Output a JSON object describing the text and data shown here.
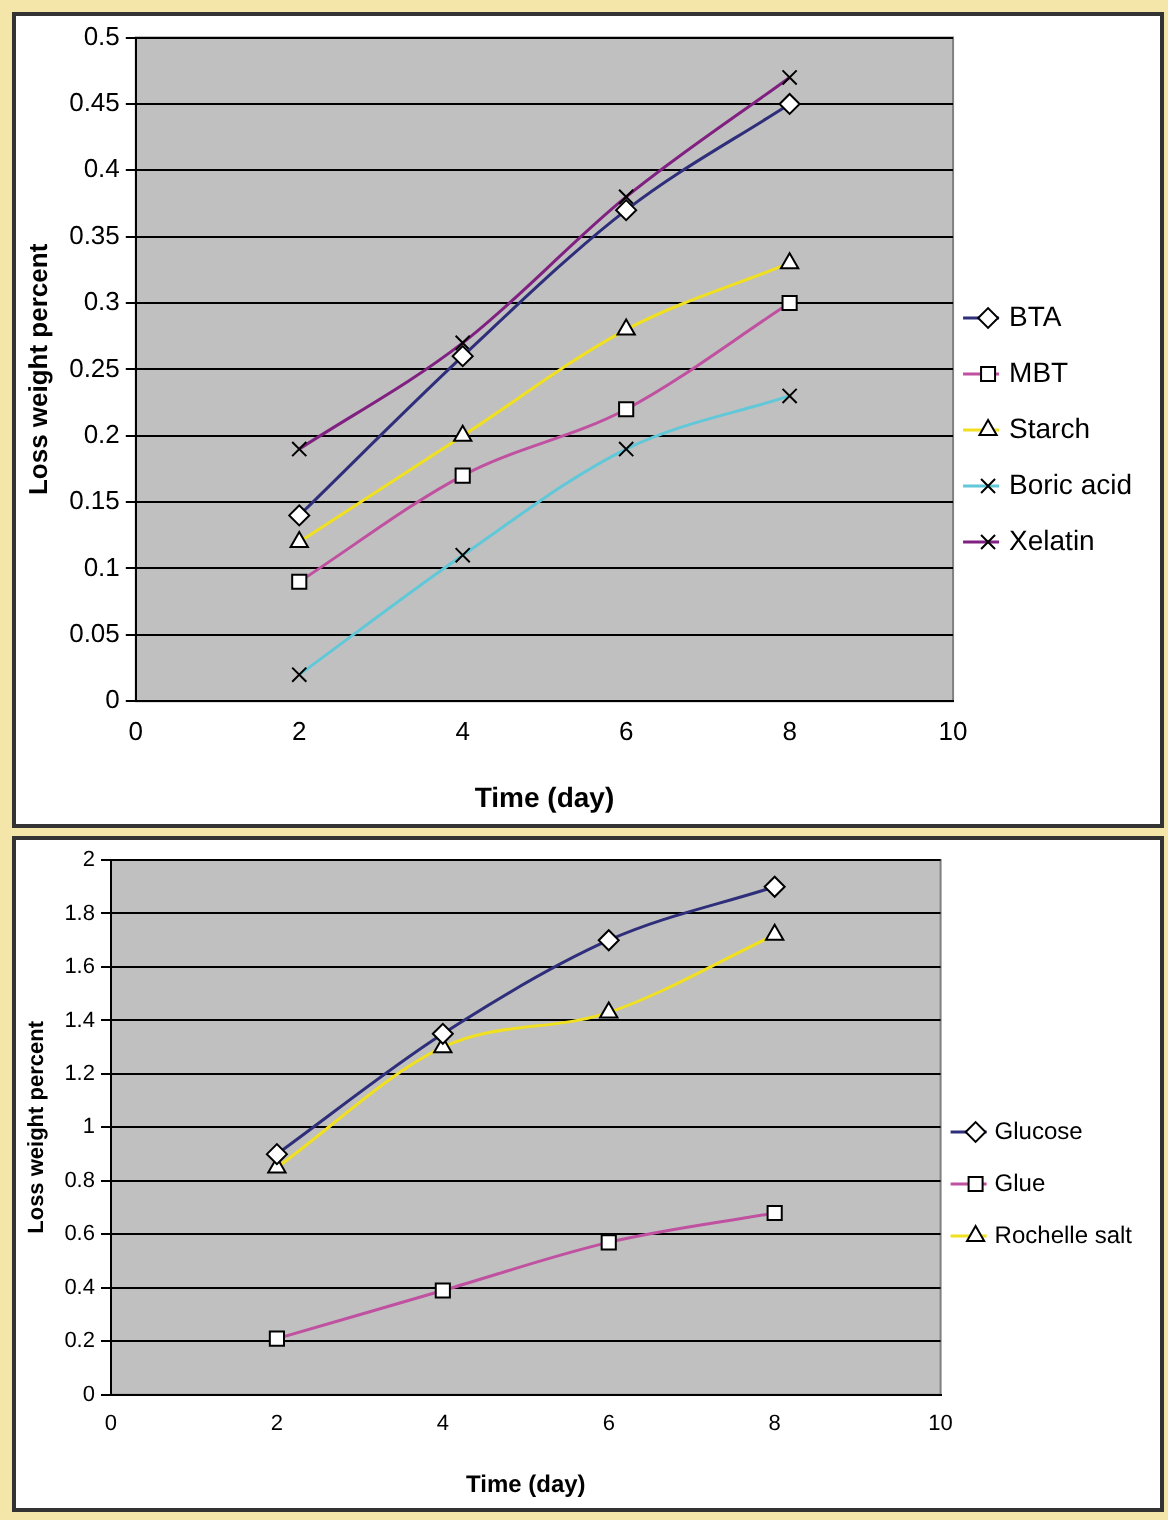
{
  "chart_data": [
    {
      "type": "line",
      "xlabel": "Time (day)",
      "ylabel": "Loss weight percent",
      "x": [
        2,
        4,
        6,
        8
      ],
      "xlim": [
        0,
        10
      ],
      "xticks": [
        0,
        2,
        4,
        6,
        8,
        10
      ],
      "ylim": [
        0,
        0.5
      ],
      "yticks": [
        0,
        0.05,
        0.1,
        0.15,
        0.2,
        0.25,
        0.3,
        0.35,
        0.4,
        0.45,
        0.5
      ],
      "grid": "y",
      "legend": "right",
      "series": [
        {
          "name": "BTA",
          "color": "#2e2e7a",
          "marker": "diamond",
          "values": [
            0.14,
            0.26,
            0.37,
            0.45
          ]
        },
        {
          "name": "MBT",
          "color": "#c050a0",
          "marker": "square",
          "values": [
            0.09,
            0.17,
            0.22,
            0.3
          ]
        },
        {
          "name": "Starch",
          "color": "#f0e020",
          "marker": "triangle",
          "values": [
            0.12,
            0.2,
            0.28,
            0.33
          ]
        },
        {
          "name": "Boric acid",
          "color": "#60c8d8",
          "marker": "cross",
          "values": [
            0.02,
            0.11,
            0.19,
            0.23
          ]
        },
        {
          "name": "Xelatin",
          "color": "#802080",
          "marker": "cross",
          "values": [
            0.19,
            0.27,
            0.38,
            0.47
          ]
        }
      ]
    },
    {
      "type": "line",
      "xlabel": "Time (day)",
      "ylabel": "Loss weight percent",
      "x": [
        2,
        4,
        6,
        8
      ],
      "xlim": [
        0,
        10
      ],
      "xticks": [
        0,
        2,
        4,
        6,
        8,
        10
      ],
      "ylim": [
        0,
        2
      ],
      "yticks": [
        0,
        0.2,
        0.4,
        0.6,
        0.8,
        1,
        1.2,
        1.4,
        1.6,
        1.8,
        2
      ],
      "grid": "y",
      "legend": "right",
      "series": [
        {
          "name": "Glucose",
          "color": "#2e2e7a",
          "marker": "diamond",
          "values": [
            0.9,
            1.35,
            1.7,
            1.9
          ]
        },
        {
          "name": "Glue",
          "color": "#c050a0",
          "marker": "square",
          "values": [
            0.21,
            0.39,
            0.57,
            0.68
          ]
        },
        {
          "name": "Rochelle salt",
          "color": "#f0e020",
          "marker": "triangle",
          "values": [
            0.85,
            1.3,
            1.43,
            1.72
          ]
        }
      ]
    }
  ]
}
